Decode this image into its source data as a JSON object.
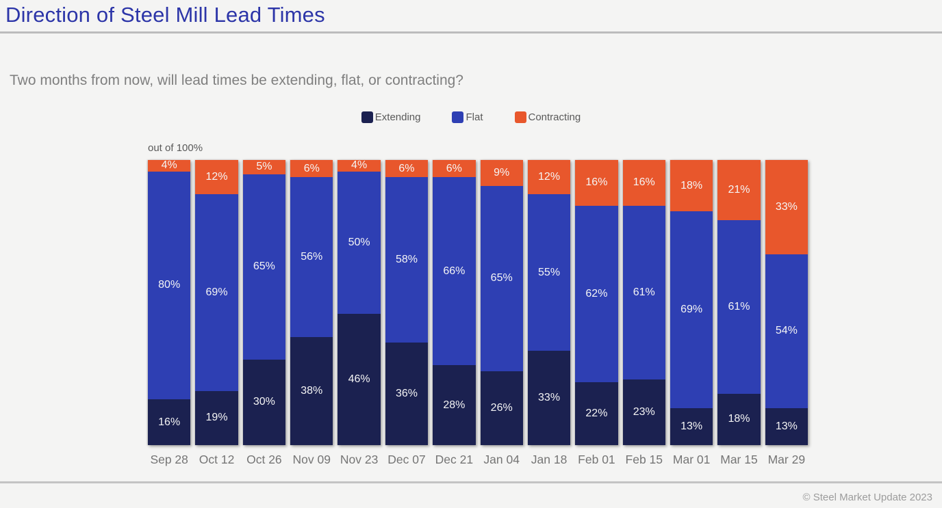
{
  "header": {
    "title": "Direction of Steel Mill Lead Times",
    "title_color": "#2c35a8"
  },
  "subtitle": "Two months from now, will lead times be extending, flat, or contracting?",
  "axis_note": "out of 100%",
  "chart_data": {
    "type": "bar",
    "stacked": true,
    "orientation": "vertical",
    "title": "Direction of Steel Mill Lead Times",
    "question": "Two months from now, will lead times be extending, flat, or contracting?",
    "ylim": [
      0,
      100
    ],
    "grid": false,
    "legend_position": "top-center",
    "value_suffix": "%",
    "categories": [
      "Sep 28",
      "Oct 12",
      "Oct 26",
      "Nov 09",
      "Nov 23",
      "Dec 07",
      "Dec 21",
      "Jan 04",
      "Jan 18",
      "Feb 01",
      "Feb 15",
      "Mar 01",
      "Mar 15",
      "Mar 29"
    ],
    "series": [
      {
        "name": "Extending",
        "color": "#1b2150",
        "values": [
          16,
          19,
          30,
          38,
          46,
          36,
          28,
          26,
          33,
          22,
          23,
          13,
          18,
          13
        ]
      },
      {
        "name": "Flat",
        "color": "#2e3fb3",
        "values": [
          80,
          69,
          65,
          56,
          50,
          58,
          66,
          65,
          55,
          62,
          61,
          69,
          61,
          54
        ]
      },
      {
        "name": "Contracting",
        "color": "#e8572c",
        "values": [
          4,
          12,
          5,
          6,
          4,
          6,
          6,
          9,
          12,
          16,
          16,
          18,
          21,
          33
        ]
      }
    ],
    "annotation": "out of 100%"
  },
  "footer": {
    "copyright": "© Steel Market Update 2023"
  }
}
